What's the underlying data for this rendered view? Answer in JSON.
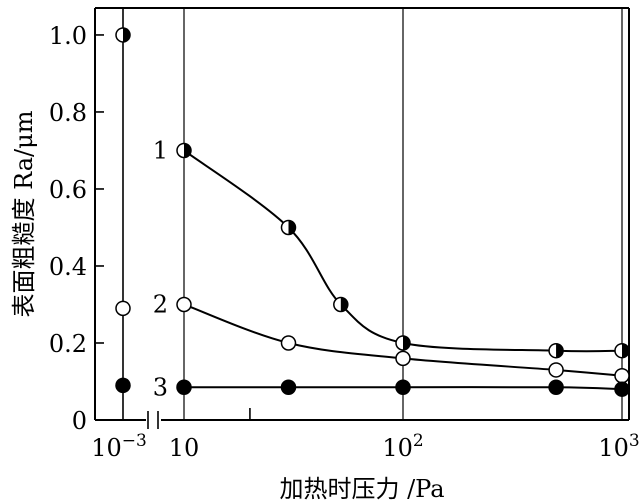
{
  "chart_data": {
    "type": "scatter",
    "title": "",
    "xlabel": "加热时压力 /Pa",
    "ylabel": "表面粗糙度 Ra/μm",
    "x_scale": "log",
    "x_axis_break": true,
    "x_ticks_left": {
      "base": "10",
      "exp": "−3"
    },
    "x_ticks_main": [
      {
        "value": 10,
        "base": "10",
        "exp": ""
      },
      {
        "value": 100,
        "base": "10",
        "exp": "2"
      },
      {
        "value": 1000,
        "base": "10",
        "exp": "3"
      }
    ],
    "x_minor_ticks": [
      20
    ],
    "y_ticks": [
      "0",
      "0.2",
      "0.4",
      "0.6",
      "0.8",
      "1.0"
    ],
    "ylim": [
      0,
      1.07
    ],
    "xlim": [
      10,
      1000
    ],
    "grid": "vertical lines at 10, 100, 1000",
    "series": [
      {
        "name": "1",
        "marker": "half-filled",
        "points": [
          {
            "x": 10,
            "y": 0.7
          },
          {
            "x": 30,
            "y": 0.5
          },
          {
            "x": 52,
            "y": 0.3
          },
          {
            "x": 100,
            "y": 0.2
          },
          {
            "x": 500,
            "y": 0.18
          },
          {
            "x": 1000,
            "y": 0.18
          }
        ],
        "left_point": {
          "x": 0.001,
          "y": 1.0
        }
      },
      {
        "name": "2",
        "marker": "open",
        "points": [
          {
            "x": 10,
            "y": 0.3
          },
          {
            "x": 30,
            "y": 0.2
          },
          {
            "x": 100,
            "y": 0.16
          },
          {
            "x": 500,
            "y": 0.13
          },
          {
            "x": 1000,
            "y": 0.115
          }
        ],
        "left_point": {
          "x": 0.001,
          "y": 0.29
        }
      },
      {
        "name": "3",
        "marker": "filled",
        "points": [
          {
            "x": 10,
            "y": 0.085
          },
          {
            "x": 30,
            "y": 0.085
          },
          {
            "x": 100,
            "y": 0.085
          },
          {
            "x": 500,
            "y": 0.085
          },
          {
            "x": 1000,
            "y": 0.08
          }
        ],
        "left_point": {
          "x": 0.001,
          "y": 0.09
        }
      }
    ]
  }
}
